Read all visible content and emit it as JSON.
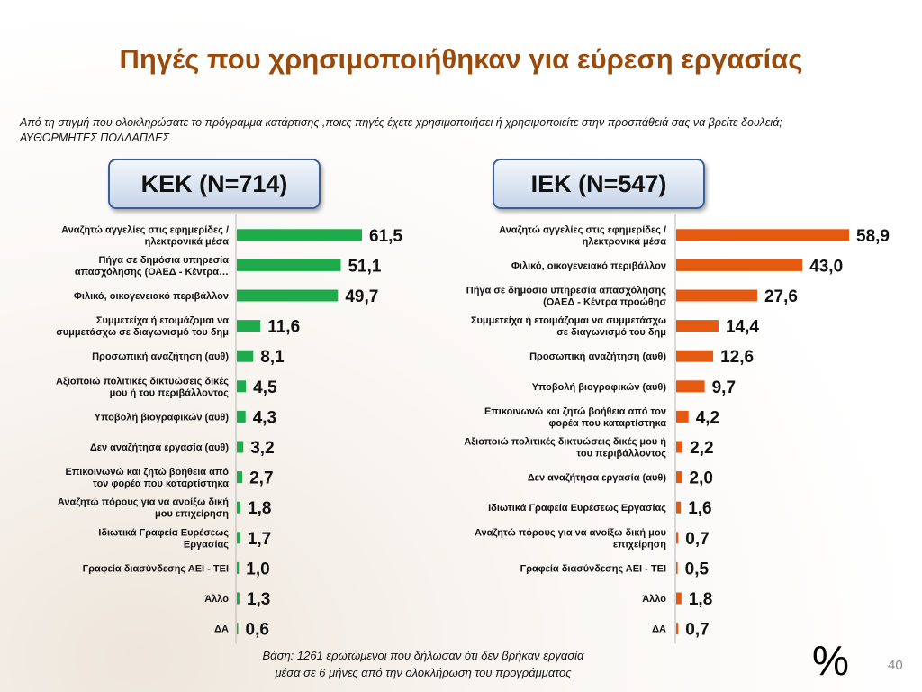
{
  "title": "Πηγές που χρησιμοποιήθηκαν για εύρεση εργασίας",
  "question": "Από τη στιγμή που ολοκληρώσατε το πρόγραμμα κατάρτισης ,ποιες πηγές έχετε χρησιμοποιήσει ή χρησιμοποιείτε στην προσπάθειά σας να βρείτε δουλειά;",
  "question_note": "ΑΥΘΟΡΜΗΤΕΣ ΠΟΛΛΑΠΛΕΣ",
  "panels": {
    "left": "ΚΕΚ (Ν=714)",
    "right": "ΙΕΚ (Ν=547)"
  },
  "footnote_line1": "Βάση: 1261 ερωτώμενοι που δήλωσαν ότι δεν βρήκαν εργασία",
  "footnote_line2": "μέσα σε 6 μήνες από την ολοκλήρωση του προγράμματος",
  "unit_sign": "%",
  "page_number": "40",
  "colors": {
    "kek": "#1faa4c",
    "iek": "#e45a10",
    "title": "#9a4a0a"
  },
  "chart_data": [
    {
      "type": "bar",
      "orientation": "horizontal",
      "color": "#1faa4c",
      "max_value": 61.5,
      "categories": [
        [
          "Αναζητώ αγγελίες στις εφημερίδες /",
          "ηλεκτρονικά μέσα"
        ],
        [
          "Πήγα σε δημόσια υπηρεσία",
          "απασχόλησης  (ΟΑΕΔ - Κέντρα…"
        ],
        [
          "Φιλικό, οικογενειακό περιβάλλον"
        ],
        [
          "Συμμετείχα ή ετοιμάζομαι να",
          "συμμετάσχω σε διαγωνισμό του δημ"
        ],
        [
          "Προσωπική αναζήτηση (αυθ)"
        ],
        [
          "Αξιοποιώ πολιτικές δικτυώσεις δικές",
          "μου ή του περιβάλλοντος"
        ],
        [
          "Υποβολή βιογραφικών (αυθ)"
        ],
        [
          "Δεν αναζήτησα εργασία (αυθ)"
        ],
        [
          "Επικοινωνώ και ζητώ βοήθεια από",
          "τον φορέα που καταρτίστηκα"
        ],
        [
          "Αναζητώ πόρους για να ανοίξω δική",
          "μου επιχείρηση"
        ],
        [
          "Ιδιωτικά Γραφεία Ευρέσεως",
          "Εργασίας"
        ],
        [
          "Γραφεία διασύνδεσης  ΑΕΙ - ΤΕΙ"
        ],
        [
          "Άλλο"
        ],
        [
          "ΔΑ"
        ]
      ],
      "values": [
        61.5,
        51.1,
        49.7,
        11.6,
        8.1,
        4.5,
        4.3,
        3.2,
        2.7,
        1.8,
        1.7,
        1.0,
        1.3,
        0.6
      ],
      "labels": [
        "61,5",
        "51,1",
        "49,7",
        "11,6",
        "8,1",
        "4,5",
        "4,3",
        "3,2",
        "2,7",
        "1,8",
        "1,7",
        "1,0",
        "1,3",
        "0,6"
      ]
    },
    {
      "type": "bar",
      "orientation": "horizontal",
      "color": "#e45a10",
      "max_value": 58.9,
      "categories": [
        [
          "Αναζητώ αγγελίες στις εφημερίδες /",
          "ηλεκτρονικά μέσα"
        ],
        [
          "Φιλικό, οικογενειακό περιβάλλον"
        ],
        [
          "Πήγα σε δημόσια υπηρεσία απασχόλησης",
          "(ΟΑΕΔ - Κέντρα προώθησ"
        ],
        [
          "Συμμετείχα ή ετοιμάζομαι να συμμετάσχω",
          "σε διαγωνισμό του δημ"
        ],
        [
          "Προσωπική αναζήτηση (αυθ)"
        ],
        [
          "Υποβολή βιογραφικών (αυθ)"
        ],
        [
          "Επικοινωνώ και ζητώ βοήθεια από τον",
          "φορέα που καταρτίστηκα"
        ],
        [
          "Αξιοποιώ πολιτικές δικτυώσεις δικές μου ή",
          "του περιβάλλοντος"
        ],
        [
          "Δεν αναζήτησα εργασία (αυθ)"
        ],
        [
          "Ιδιωτικά Γραφεία Ευρέσεως  Εργασίας"
        ],
        [
          "Αναζητώ πόρους για να ανοίξω δική μου",
          "επιχείρηση"
        ],
        [
          "Γραφεία διασύνδεσης  ΑΕΙ - ΤΕΙ"
        ],
        [
          "Άλλο"
        ],
        [
          "ΔΑ"
        ]
      ],
      "values": [
        58.9,
        43.0,
        27.6,
        14.4,
        12.6,
        9.7,
        4.2,
        2.2,
        2.0,
        1.6,
        0.7,
        0.5,
        1.8,
        0.7
      ],
      "labels": [
        "58,9",
        "43,0",
        "27,6",
        "14,4",
        "12,6",
        "9,7",
        "4,2",
        "2,2",
        "2,0",
        "1,6",
        "0,7",
        "0,5",
        "1,8",
        "0,7"
      ]
    }
  ]
}
